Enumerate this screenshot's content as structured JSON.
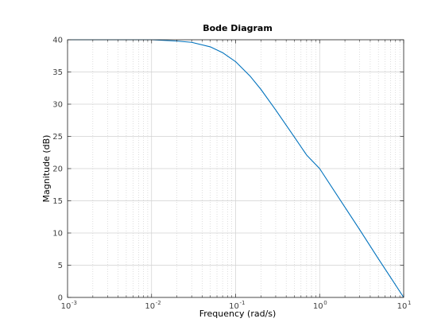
{
  "chart_data": {
    "type": "line",
    "title": "Bode Diagram",
    "xlabel": "Frequency  (rad/s)",
    "ylabel": "Magnitude (dB)",
    "xscale": "log",
    "xlim": [
      0.001,
      10
    ],
    "ylim": [
      0,
      40
    ],
    "x_ticks": [
      {
        "base": "10",
        "exp": "-3",
        "value": 0.001
      },
      {
        "base": "10",
        "exp": "-2",
        "value": 0.01
      },
      {
        "base": "10",
        "exp": "-1",
        "value": 0.1
      },
      {
        "base": "10",
        "exp": "0",
        "value": 1
      },
      {
        "base": "10",
        "exp": "1",
        "value": 10
      }
    ],
    "y_ticks": [
      "0",
      "5",
      "10",
      "15",
      "20",
      "25",
      "30",
      "35",
      "40"
    ],
    "grid": true,
    "minor_grid": true,
    "line_color": "#0072bd",
    "series": [
      {
        "x": [
          0.001,
          0.002,
          0.005,
          0.01,
          0.02,
          0.03,
          0.05,
          0.07,
          0.1,
          0.15,
          0.2,
          0.3,
          0.5,
          0.7,
          1,
          2,
          3,
          5,
          7,
          10
        ],
        "values": [
          40,
          40,
          40,
          40,
          39.8,
          39.6,
          38.9,
          38.0,
          36.6,
          34.3,
          32.3,
          29.1,
          24.9,
          22.1,
          20.0,
          14.0,
          10.5,
          6.0,
          3.1,
          0
        ]
      }
    ]
  }
}
